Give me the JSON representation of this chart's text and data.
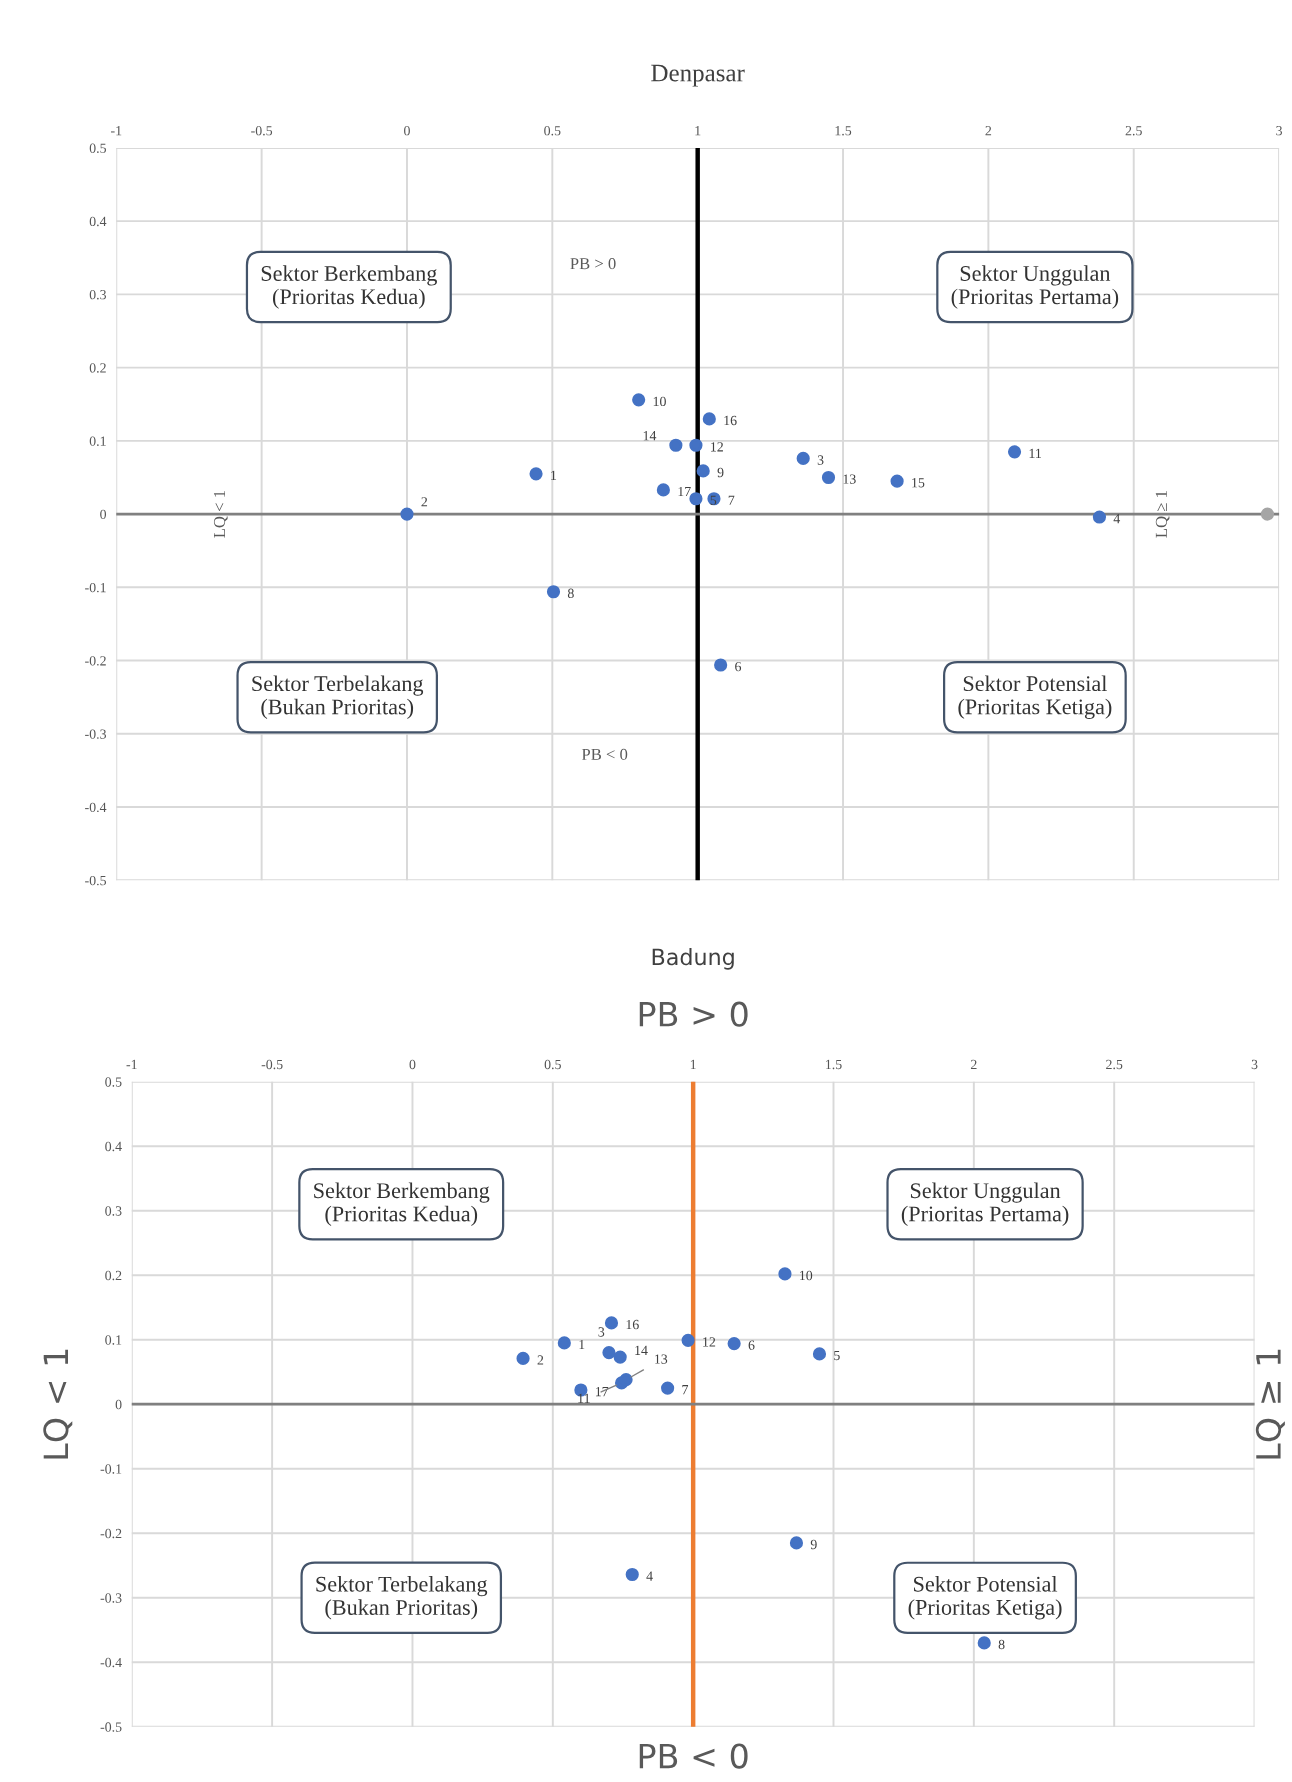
{
  "chart_data": [
    {
      "type": "scatter",
      "title": "Denpasar",
      "xlim": [
        -1,
        3
      ],
      "ylim": [
        -0.5,
        0.5
      ],
      "xticks": [
        -1,
        -0.5,
        0,
        0.5,
        1,
        1.5,
        2,
        2.5,
        3
      ],
      "yticks": [
        -0.5,
        -0.4,
        -0.3,
        -0.2,
        -0.1,
        0,
        0.1,
        0.2,
        0.3,
        0.4,
        0.5
      ],
      "grid": true,
      "marker": "circle",
      "series": [
        {
          "color": "#4472c4",
          "x": [
            0.797,
            1.04,
            0.925,
            0.994,
            0.444,
            1.019,
            0.882,
            0.994,
            1.056,
            1.363,
            1.45,
            1.686,
            2.09,
            2.382,
            0.0,
            0.504,
            1.079
          ],
          "values": [
            0.156,
            0.13,
            0.094,
            0.094,
            0.055,
            0.059,
            0.033,
            0.021,
            0.021,
            0.076,
            0.05,
            0.045,
            0.085,
            -0.004,
            0.0,
            -0.106,
            -0.206
          ]
        },
        {
          "color": "#a5a5a5",
          "x": [
            2.96
          ],
          "values": [
            0.0
          ]
        }
      ],
      "ref_lines": [
        {
          "axis": "x",
          "value": 1,
          "color": "#000000"
        },
        {
          "axis": "y",
          "value": 0,
          "color": "#808080"
        }
      ],
      "annotations": [
        "Sektor Berkembang\n(Prioritas Kedua)",
        "Sektor Unggulan\n(Prioritas Pertama)",
        "Sektor Terbelakang\n(Bukan Prioritas)",
        "Sektor Potensial\n(Prioritas Ketiga)",
        "PB > 0",
        "PB < 0",
        "LQ < 1",
        "LQ ≥ 1",
        {
          "text": "10",
          "x": 0.797,
          "y": 0.156
        },
        {
          "text": "16",
          "x": 1.04,
          "y": 0.13
        },
        {
          "text": "14",
          "x": 0.925,
          "y": 0.094
        },
        {
          "text": "12",
          "x": 0.994,
          "y": 0.094
        },
        {
          "text": "1",
          "x": 0.444,
          "y": 0.055
        },
        {
          "text": "9",
          "x": 1.019,
          "y": 0.059
        },
        {
          "text": "17",
          "x": 0.882,
          "y": 0.033
        },
        {
          "text": "5",
          "x": 0.994,
          "y": 0.021
        },
        {
          "text": "7",
          "x": 1.056,
          "y": 0.021
        },
        {
          "text": "3",
          "x": 1.363,
          "y": 0.076
        },
        {
          "text": "13",
          "x": 1.45,
          "y": 0.05
        },
        {
          "text": "15",
          "x": 1.686,
          "y": 0.045
        },
        {
          "text": "11",
          "x": 2.09,
          "y": 0.085
        },
        {
          "text": "4",
          "x": 2.382,
          "y": -0.004
        },
        {
          "text": "2",
          "x": 0.0,
          "y": 0.0
        },
        {
          "text": "8",
          "x": 0.504,
          "y": -0.106
        },
        {
          "text": "6",
          "x": 1.079,
          "y": -0.206
        }
      ]
    },
    {
      "type": "scatter",
      "title": "Badung",
      "xlim": [
        -1,
        3
      ],
      "ylim": [
        -0.5,
        0.5
      ],
      "xticks": [
        -1,
        -0.5,
        0,
        0.5,
        1,
        1.5,
        2,
        2.5,
        3
      ],
      "yticks": [
        -0.5,
        -0.4,
        -0.3,
        -0.2,
        -0.1,
        0,
        0.1,
        0.2,
        0.3,
        0.4,
        0.5
      ],
      "grid": true,
      "marker": "circle",
      "series": [
        {
          "color": "#4472c4",
          "x": [
            1.327,
            0.709,
            0.541,
            0.982,
            1.146,
            0.394,
            0.7,
            0.74,
            1.45,
            0.6,
            0.745,
            0.761,
            0.909,
            1.368,
            0.783,
            2.037
          ],
          "values": [
            0.202,
            0.126,
            0.095,
            0.099,
            0.094,
            0.071,
            0.08,
            0.073,
            0.078,
            0.022,
            0.033,
            0.038,
            0.025,
            -0.215,
            -0.264,
            -0.37
          ]
        }
      ],
      "ref_lines": [
        {
          "axis": "x",
          "value": 1,
          "color": "#ed7d31"
        },
        {
          "axis": "y",
          "value": 0,
          "color": "#808080"
        }
      ],
      "annotations": [
        "Sektor Berkembang\n(Prioritas Kedua)",
        "Sektor Unggulan\n(Prioritas Pertama)",
        "Sektor Terbelakang\n(Bukan Prioritas)",
        "Sektor Potensial\n(Prioritas Ketiga)",
        "PB > 0",
        "PB < 0",
        "LQ < 1",
        "LQ ≥ 1",
        {
          "text": "10",
          "x": 1.327,
          "y": 0.202
        },
        {
          "text": "16",
          "x": 0.709,
          "y": 0.126
        },
        {
          "text": "1",
          "x": 0.541,
          "y": 0.095
        },
        {
          "text": "12",
          "x": 0.982,
          "y": 0.099
        },
        {
          "text": "6",
          "x": 1.146,
          "y": 0.094
        },
        {
          "text": "2",
          "x": 0.394,
          "y": 0.071
        },
        {
          "text": "3",
          "x": 0.7,
          "y": 0.08
        },
        {
          "text": "14",
          "x": 0.74,
          "y": 0.073
        },
        {
          "text": "5",
          "x": 1.45,
          "y": 0.078
        },
        {
          "text": "17",
          "x": 0.6,
          "y": 0.022
        },
        {
          "text": "11",
          "x": 0.745,
          "y": 0.033
        },
        {
          "text": "13",
          "x": 0.761,
          "y": 0.038
        },
        {
          "text": "7",
          "x": 0.909,
          "y": 0.025
        },
        {
          "text": "9",
          "x": 1.368,
          "y": -0.215
        },
        {
          "text": "4",
          "x": 0.783,
          "y": -0.264
        },
        {
          "text": "8",
          "x": 2.037,
          "y": -0.37
        }
      ]
    }
  ]
}
